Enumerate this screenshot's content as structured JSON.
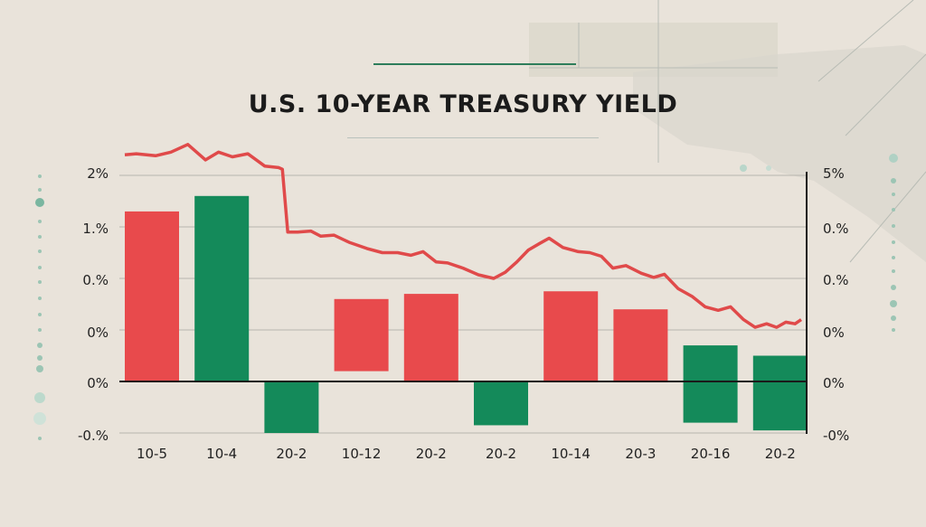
{
  "chart_data": {
    "type": "bar",
    "title": "U.S. 10-YEAR TREASURY YIELD",
    "categories": [
      "10-5",
      "10-4",
      "20-2",
      "10-12",
      "20-2",
      "20-2",
      "10-14",
      "20-3",
      "20-16",
      "20-2"
    ],
    "left_axis_ticks": [
      "2%",
      "1.%",
      "0.%",
      "0%",
      "0%",
      "-0.%"
    ],
    "right_axis_ticks": [
      "5%",
      "0.%",
      "0.%",
      "0%",
      "0%",
      "-0%"
    ],
    "bars": [
      {
        "from": 0,
        "to": 3.3,
        "color": "#e84a4c"
      },
      {
        "from": 0,
        "to": 3.6,
        "color": "#148a5a"
      },
      {
        "from": 0,
        "to": -1.0,
        "color": "#148a5a"
      },
      {
        "from": 0.2,
        "to": 1.6,
        "color": "#e84a4c"
      },
      {
        "from": 0,
        "to": 1.7,
        "color": "#e84a4c"
      },
      {
        "from": 0,
        "to": -0.85,
        "color": "#148a5a"
      },
      {
        "from": 0,
        "to": 1.75,
        "color": "#e84a4c"
      },
      {
        "from": 0,
        "to": 1.4,
        "color": "#e84a4c"
      },
      {
        "from": -0.8,
        "to": 0.7,
        "color": "#148a5a"
      },
      {
        "from": -0.95,
        "to": 0.5,
        "color": "#148a5a"
      }
    ],
    "line": {
      "color": "#e04a4a",
      "points": [
        [
          0.0,
          4.4
        ],
        [
          0.15,
          4.42
        ],
        [
          0.4,
          4.38
        ],
        [
          0.6,
          4.45
        ],
        [
          0.82,
          4.6
        ],
        [
          1.05,
          4.3
        ],
        [
          1.22,
          4.45
        ],
        [
          1.4,
          4.36
        ],
        [
          1.6,
          4.42
        ],
        [
          1.82,
          4.18
        ],
        [
          2.0,
          4.15
        ],
        [
          2.05,
          4.12
        ],
        [
          2.12,
          2.9
        ],
        [
          2.25,
          2.9
        ],
        [
          2.42,
          2.92
        ],
        [
          2.55,
          2.82
        ],
        [
          2.72,
          2.84
        ],
        [
          2.92,
          2.7
        ],
        [
          3.15,
          2.58
        ],
        [
          3.35,
          2.5
        ],
        [
          3.55,
          2.5
        ],
        [
          3.72,
          2.45
        ],
        [
          3.88,
          2.52
        ],
        [
          4.05,
          2.32
        ],
        [
          4.2,
          2.3
        ],
        [
          4.4,
          2.2
        ],
        [
          4.6,
          2.07
        ],
        [
          4.8,
          2.0
        ],
        [
          4.95,
          2.12
        ],
        [
          5.1,
          2.32
        ],
        [
          5.25,
          2.55
        ],
        [
          5.4,
          2.68
        ],
        [
          5.52,
          2.78
        ],
        [
          5.7,
          2.6
        ],
        [
          5.9,
          2.52
        ],
        [
          6.05,
          2.5
        ],
        [
          6.2,
          2.43
        ],
        [
          6.35,
          2.2
        ],
        [
          6.52,
          2.25
        ],
        [
          6.72,
          2.1
        ],
        [
          6.88,
          2.02
        ],
        [
          7.02,
          2.08
        ],
        [
          7.2,
          1.8
        ],
        [
          7.38,
          1.65
        ],
        [
          7.55,
          1.45
        ],
        [
          7.72,
          1.38
        ],
        [
          7.88,
          1.45
        ],
        [
          8.05,
          1.2
        ],
        [
          8.2,
          1.05
        ],
        [
          8.35,
          1.12
        ],
        [
          8.48,
          1.05
        ],
        [
          8.6,
          1.15
        ],
        [
          8.72,
          1.12
        ],
        [
          8.8,
          1.2
        ]
      ]
    },
    "y_range": [
      -1.1,
      4.25
    ],
    "grid": true,
    "legend": "none"
  }
}
